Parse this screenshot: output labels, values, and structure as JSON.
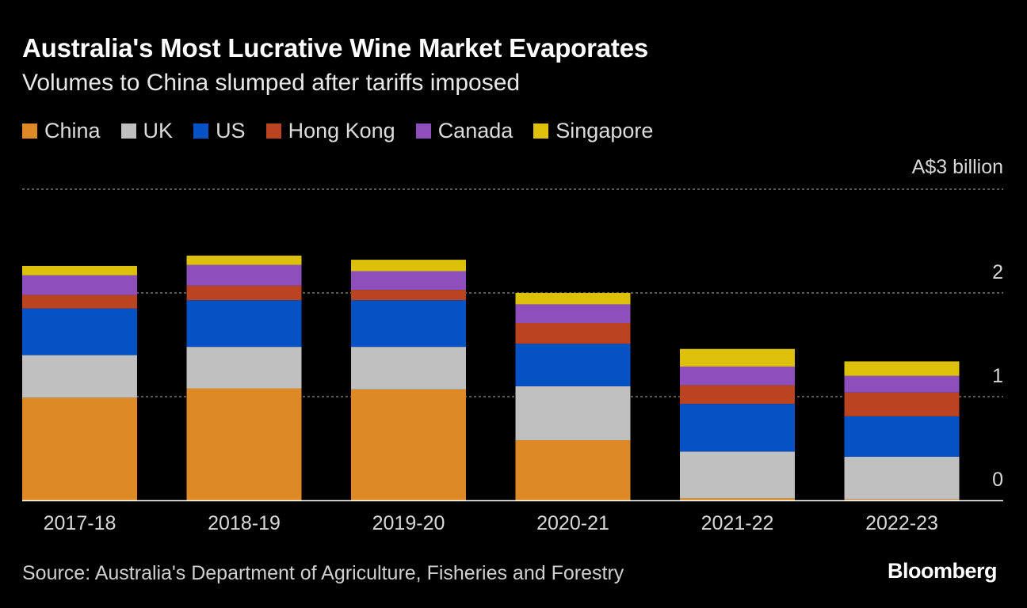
{
  "title": "Australia's Most Lucrative Wine Market Evaporates",
  "subtitle": "Volumes to China slumped after tariffs imposed",
  "source": "Source: Australia's Department of Agriculture, Fisheries and Forestry",
  "logo": "Bloomberg",
  "colors": {
    "China": "#dd8a26",
    "UK": "#c0c0c0",
    "US": "#0452c4",
    "Hong Kong": "#b9441f",
    "Canada": "#8e4fbd",
    "Singapore": "#dcc00a",
    "background": "#000000",
    "gridline": "#777777"
  },
  "chart_data": {
    "type": "bar",
    "stacked": true,
    "title": "Australia's Most Lucrative Wine Market Evaporates",
    "subtitle": "Volumes to China slumped after tariffs imposed",
    "xlabel": "",
    "ylabel": "A$3 billion",
    "ylim": [
      0,
      3
    ],
    "yticks": [
      0,
      1,
      2,
      3
    ],
    "ytick_labels": [
      "0",
      "1",
      "2",
      "A$3 billion"
    ],
    "grid": true,
    "legend_position": "top",
    "categories": [
      "2017-18",
      "2018-19",
      "2019-20",
      "2020-21",
      "2021-22",
      "2022-23"
    ],
    "series": [
      {
        "name": "China",
        "values": [
          0.99,
          1.08,
          1.07,
          0.58,
          0.02,
          0.01
        ]
      },
      {
        "name": "UK",
        "values": [
          0.41,
          0.4,
          0.41,
          0.52,
          0.45,
          0.41
        ]
      },
      {
        "name": "US",
        "values": [
          0.45,
          0.45,
          0.45,
          0.41,
          0.46,
          0.39
        ]
      },
      {
        "name": "Hong Kong",
        "values": [
          0.13,
          0.14,
          0.1,
          0.2,
          0.18,
          0.23
        ]
      },
      {
        "name": "Canada",
        "values": [
          0.19,
          0.2,
          0.18,
          0.18,
          0.18,
          0.16
        ]
      },
      {
        "name": "Singapore",
        "values": [
          0.09,
          0.09,
          0.11,
          0.11,
          0.17,
          0.14
        ]
      }
    ]
  }
}
